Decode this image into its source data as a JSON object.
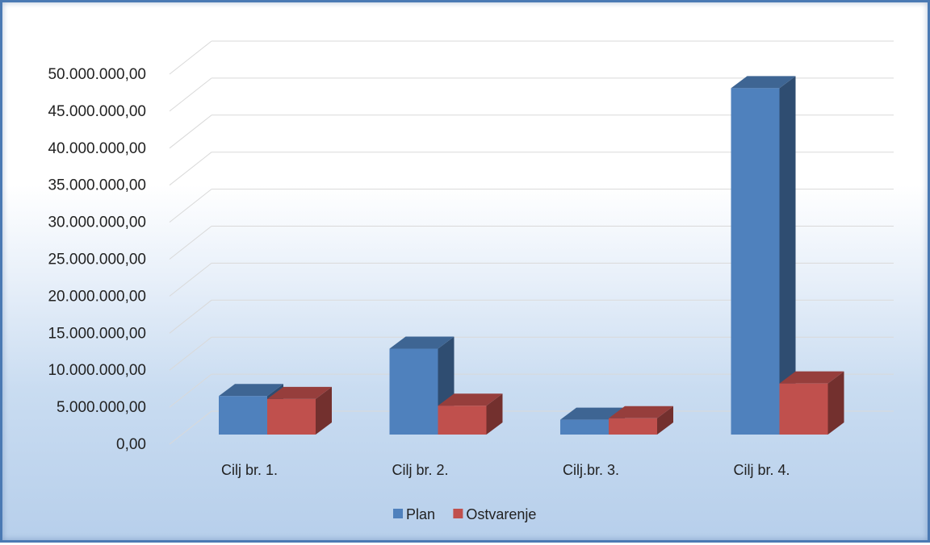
{
  "chart_data": {
    "type": "bar",
    "categories": [
      "Cilj br. 1.",
      "Cilj br. 2.",
      "Cilj.br. 3.",
      "Cilj br. 4."
    ],
    "series": [
      {
        "name": "Plan",
        "values": [
          5200000,
          11600000,
          2000000,
          46800000
        ]
      },
      {
        "name": "Ostvarenje",
        "values": [
          4800000,
          3900000,
          2200000,
          6900000
        ]
      }
    ],
    "y_ticks": [
      "0,00",
      "5.000.000,00",
      "10.000.000,00",
      "15.000.000,00",
      "20.000.000,00",
      "25.000.000,00",
      "30.000.000,00",
      "35.000.000,00",
      "40.000.000,00",
      "45.000.000,00",
      "50.000.000,00"
    ],
    "ylim": [
      0,
      50000000
    ],
    "grid": true,
    "legend_position": "bottom",
    "colors": {
      "Plan": "#4f81bd",
      "Ostvarenje": "#c0504d"
    }
  }
}
